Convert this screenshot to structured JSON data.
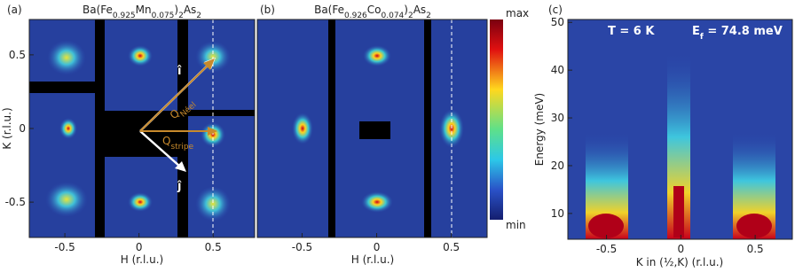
{
  "panels": [
    {
      "label": "(a)",
      "title_parts": [
        "Ba(Fe",
        "0.925",
        "Mn",
        "0.075",
        ")",
        "2",
        "As",
        "2"
      ],
      "xlabel": "H (r.l.u.)",
      "ylabel": "K (r.l.u.)",
      "xlim": [
        -0.74,
        0.78
      ],
      "ylim": [
        -0.74,
        0.74
      ],
      "xticks": [
        -0.5,
        0,
        0.5
      ],
      "yticks": [
        -0.5,
        0,
        0.5
      ],
      "annotations": {
        "i_hat": "î",
        "j_hat": "ĵ",
        "q_neel": [
          "Q",
          "Néel"
        ],
        "q_stripe": [
          "Q",
          "stripe"
        ]
      }
    },
    {
      "label": "(b)",
      "title_parts": [
        "Ba(Fe",
        "0.926",
        "Co",
        "0.074",
        ")",
        "2",
        "As",
        "2"
      ],
      "xlabel": "H (r.l.u.)",
      "xlim": [
        -0.8,
        0.74
      ],
      "ylim": [
        -0.74,
        0.74
      ],
      "xticks": [
        -0.5,
        0,
        0.5
      ]
    },
    {
      "label": "(c)",
      "xlabel": "K in (½,K) (r.l.u.)",
      "ylabel": "Energy (meV)",
      "xlim": [
        -0.76,
        0.75
      ],
      "ylim": [
        4.6,
        50.6
      ],
      "xticks": [
        -0.5,
        0,
        0.5
      ],
      "yticks": [
        10,
        20,
        30,
        40,
        50
      ],
      "annotations": {
        "temperature": "T = 6 K",
        "energy_parts": [
          "E",
          "f",
          " = 74.8 meV"
        ]
      }
    }
  ],
  "colorbar": {
    "max": "max",
    "min": "min"
  }
}
